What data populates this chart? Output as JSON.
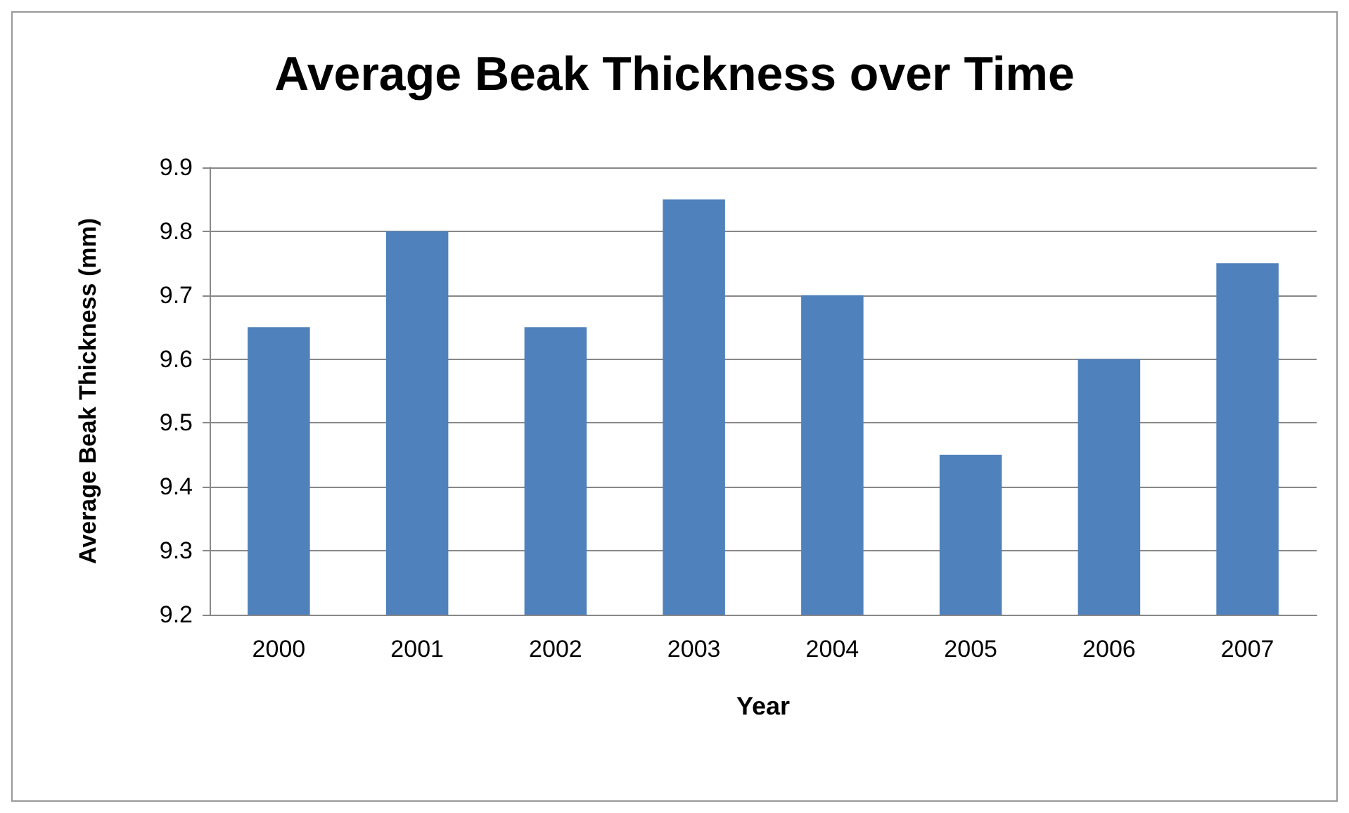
{
  "chart_data": {
    "type": "bar",
    "title": "Average Beak Thickness over Time",
    "xlabel": "Year",
    "ylabel": "Average Beak Thickness (mm)",
    "categories": [
      "2000",
      "2001",
      "2002",
      "2003",
      "2004",
      "2005",
      "2006",
      "2007"
    ],
    "values": [
      9.65,
      9.8,
      9.65,
      9.85,
      9.7,
      9.45,
      9.6,
      9.75
    ],
    "color": "#4f81bd",
    "ylim": [
      9.2,
      9.9
    ],
    "yticks": [
      9.2,
      9.3,
      9.4,
      9.5,
      9.6,
      9.7,
      9.8,
      9.9
    ],
    "grid": "y"
  }
}
